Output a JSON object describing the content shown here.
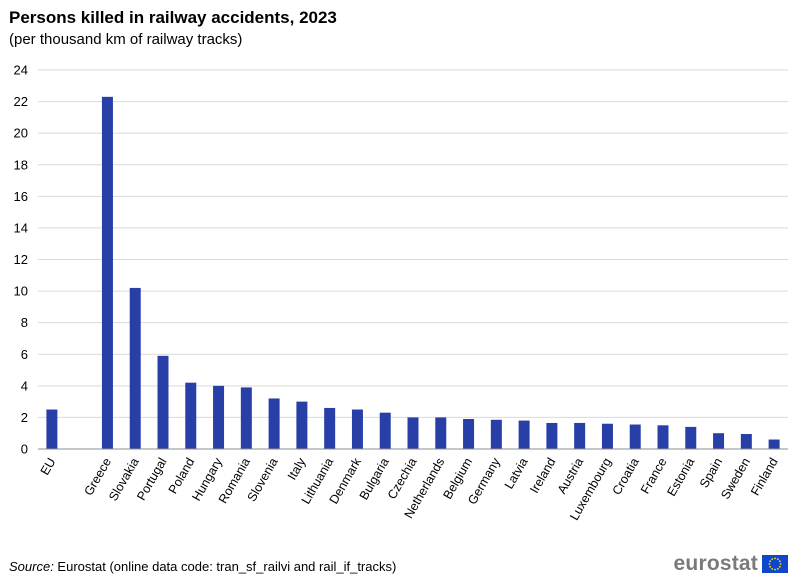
{
  "header": {
    "title": "Persons killed in railway accidents, 2023",
    "subtitle": "(per thousand  km of railway tracks)"
  },
  "footer": {
    "source_label": "Source:",
    "source_text": " Eurostat (online data code: tran_sf_railvi and rail_if_tracks)",
    "logo_text": "eurostat"
  },
  "colors": {
    "bar": "#283FA7",
    "grid": "#d9d9d9",
    "axis": "#8c8c8c",
    "flag_blue": "#0E47CB",
    "flag_star": "#FFDD00"
  },
  "chart_data": {
    "type": "bar",
    "title": "Persons killed in railway accidents, 2023",
    "subtitle": "(per thousand  km of railway tracks)",
    "xlabel": "",
    "ylabel": "",
    "ylim": [
      0,
      24
    ],
    "yticks": [
      0,
      2,
      4,
      6,
      8,
      10,
      12,
      14,
      16,
      18,
      20,
      22,
      24
    ],
    "grid": true,
    "legend": "none",
    "categories": [
      "EU",
      "",
      "Greece",
      "Slovakia",
      "Portugal",
      "Poland",
      "Hungary",
      "Romania",
      "Slovenia",
      "Italy",
      "Lithuania",
      "Denmark",
      "Bulgaria",
      "Czechia",
      "Netherlands",
      "Belgium",
      "Germany",
      "Latvia",
      "Ireland",
      "Austria",
      "Luxembourg",
      "Croatia",
      "France",
      "Estonia",
      "Spain",
      "Sweden",
      "Finland"
    ],
    "values": [
      2.5,
      null,
      22.3,
      10.2,
      5.9,
      4.2,
      4.0,
      3.9,
      3.2,
      3.0,
      2.6,
      2.5,
      2.3,
      2.0,
      2.0,
      1.9,
      1.85,
      1.8,
      1.65,
      1.65,
      1.6,
      1.55,
      1.5,
      1.4,
      1.0,
      0.95,
      0.6
    ]
  }
}
